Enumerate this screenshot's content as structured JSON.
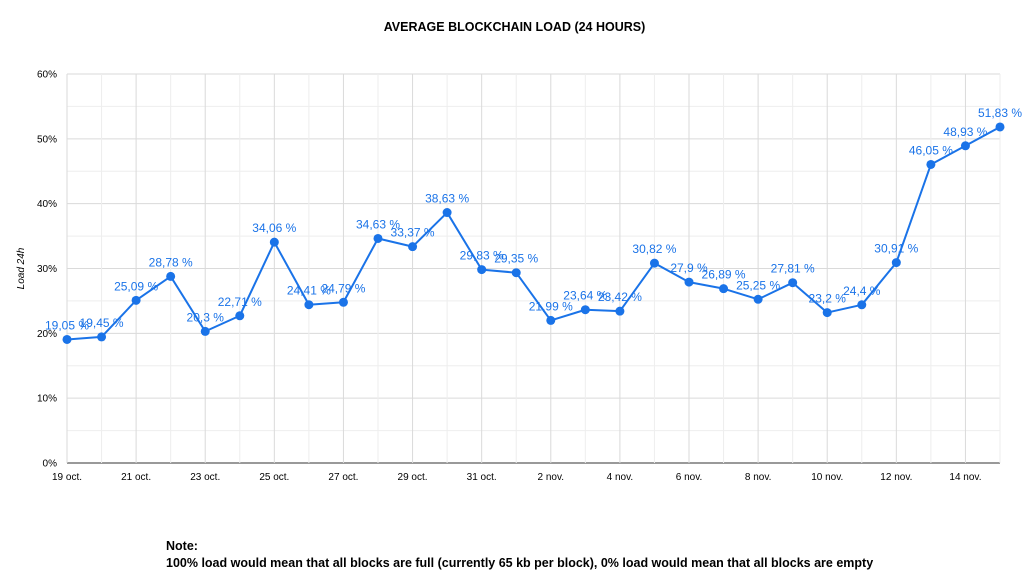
{
  "title": "AVERAGE BLOCKCHAIN LOAD (24 HOURS)",
  "note": {
    "heading": "Note:",
    "text": "100% load would mean that all blocks are full (currently 65 kb per block), 0% load would mean that all blocks are empty"
  },
  "colors": {
    "series": "#1a73e8",
    "label": "#1a73e8",
    "grid": "#e0e0e0"
  },
  "chart_data": {
    "type": "line",
    "title": "AVERAGE BLOCKCHAIN LOAD (24 HOURS)",
    "xlabel": "",
    "ylabel": "Load 24h",
    "ylim": [
      0,
      60
    ],
    "y_ticks": [
      "0%",
      "10%",
      "20%",
      "30%",
      "40%",
      "50%",
      "60%"
    ],
    "x_tick_labels": [
      "19 oct.",
      "21 oct.",
      "23 oct.",
      "25 oct.",
      "27 oct.",
      "29 oct.",
      "31 oct.",
      "2 nov.",
      "4 nov.",
      "6 nov.",
      "8 nov.",
      "10 nov.",
      "12 nov.",
      "14 nov."
    ],
    "grid": true,
    "legend": "none",
    "x": [
      "19 oct.",
      "20 oct.",
      "21 oct.",
      "22 oct.",
      "23 oct.",
      "24 oct.",
      "25 oct.",
      "26 oct.",
      "27 oct.",
      "28 oct.",
      "29 oct.",
      "30 oct.",
      "31 oct.",
      "1 nov.",
      "2 nov.",
      "3 nov.",
      "4 nov.",
      "5 nov.",
      "6 nov.",
      "7 nov.",
      "8 nov.",
      "9 nov.",
      "10 nov.",
      "11 nov.",
      "12 nov.",
      "13 nov.",
      "14 nov.",
      "15 nov."
    ],
    "series": [
      {
        "values": [
          19.05,
          19.45,
          25.09,
          28.78,
          20.3,
          22.71,
          34.06,
          24.41,
          24.79,
          34.63,
          33.37,
          38.63,
          29.83,
          29.35,
          21.99,
          23.64,
          23.42,
          30.82,
          27.9,
          26.89,
          25.25,
          27.81,
          23.2,
          24.4,
          30.91,
          46.05,
          48.93,
          51.83
        ],
        "labels": [
          "19,05 %",
          "19,45 %",
          "25,09 %",
          "28,78 %",
          "20,3 %",
          "22,71 %",
          "34,06 %",
          "24,41 %",
          "24,79 %",
          "34,63 %",
          "33,37 %",
          "38,63 %",
          "29,83 %",
          "29,35 %",
          "21,99 %",
          "23,64 %",
          "23,42 %",
          "30,82 %",
          "27,9 %",
          "26,89 %",
          "25,25 %",
          "27,81 %",
          "23,2 %",
          "24,4 %",
          "30,91 %",
          "46,05 %",
          "48,93 %",
          "51,83 %"
        ]
      }
    ]
  }
}
